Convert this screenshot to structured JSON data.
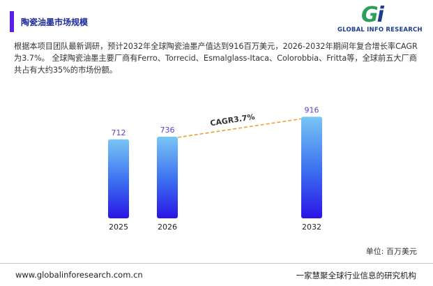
{
  "header": {
    "title": "陶瓷油墨市场规模",
    "logo": "GLOBAL INFO RESEARCH"
  },
  "description": "根据本项目团队最新调研，预计2032年全球陶瓷油墨产值达到916百万美元，2026-2032年期间年复合增长率CAGR为3.7%。 全球陶瓷油墨主要厂商有Ferro、Torrecid、Esmalglass-Itaca、Colorobbia、Fritta等，全球前五大厂商共占有大约35%的市场份额。",
  "chart_data": {
    "type": "bar",
    "categories": [
      "2025",
      "2026",
      "2032"
    ],
    "values": [
      712,
      736,
      916
    ],
    "annotation": "CAGR3.7%",
    "unit_label": "单位: 百万美元",
    "label_color": "#5b3fc9",
    "annotation_color": "#f0a030"
  },
  "footer": {
    "website": "www.globalinforesearch.com.cn",
    "slogan": "一家慧聚全球行业信息的研究机构"
  }
}
